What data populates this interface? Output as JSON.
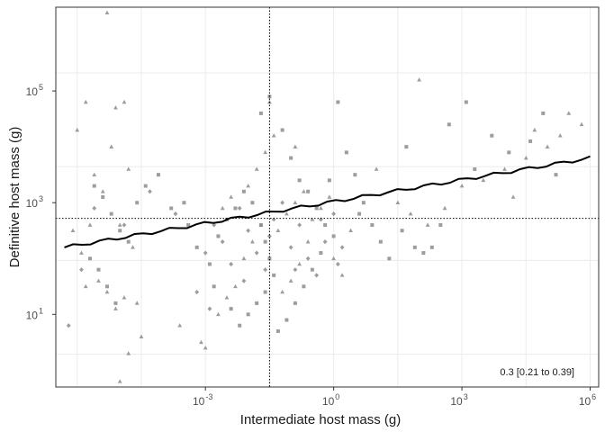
{
  "chart_data": {
    "type": "scatter",
    "xlabel": "Intermediate host mass (g)",
    "ylabel": "Definitive host mass (g)",
    "x_scale": "log10",
    "y_scale": "log10",
    "xlim_log10": [
      -6.5,
      6.2
    ],
    "ylim_log10": [
      -0.35,
      3.7
    ],
    "x_ticks": [
      {
        "log10": -3,
        "base": "10",
        "exp": "-3"
      },
      {
        "log10": 0,
        "base": "10",
        "exp": "0"
      },
      {
        "log10": 3,
        "base": "10",
        "exp": "3"
      },
      {
        "log10": 6,
        "base": "10",
        "exp": "6"
      }
    ],
    "y_ticks": [
      {
        "log10": 1,
        "base": "10",
        "exp": "1"
      },
      {
        "log10": 3,
        "base": "10",
        "exp": "3"
      },
      {
        "log10": 5,
        "base": "10",
        "exp": "5"
      }
    ],
    "grid": true,
    "reference_lines": {
      "x_log10": -1.5,
      "y_log10": 2.72
    },
    "annotation": "0.3 [0.21 to 0.39]",
    "fit_line": {
      "x_log10": [
        -6.3,
        6.0
      ],
      "y_log10": [
        2.2,
        3.8
      ]
    },
    "point_color": "#8c8c8c",
    "line_color": "#000000",
    "series": [
      {
        "shape": "triangle",
        "points": [
          [
            -5.3,
            6.4
          ],
          [
            -5.8,
            4.8
          ],
          [
            -5.1,
            4.7
          ],
          [
            -4.9,
            4.8
          ],
          [
            -5.2,
            4.0
          ],
          [
            -5.6,
            3.5
          ],
          [
            -5.4,
            3.2
          ],
          [
            -4.8,
            3.6
          ],
          [
            -5.0,
            2.6
          ],
          [
            -4.7,
            2.2
          ],
          [
            -5.9,
            2.1
          ],
          [
            -6.1,
            2.5
          ],
          [
            -5.7,
            2.6
          ],
          [
            -5.3,
            1.4
          ],
          [
            -5.5,
            1.6
          ],
          [
            -4.9,
            1.3
          ],
          [
            -4.6,
            1.2
          ],
          [
            -5.8,
            1.5
          ],
          [
            -5.1,
            1.1
          ],
          [
            -4.5,
            0.6
          ],
          [
            -4.8,
            0.3
          ],
          [
            -5.0,
            -0.2
          ],
          [
            -3.6,
            0.8
          ],
          [
            -3.1,
            0.5
          ],
          [
            -3.0,
            0.4
          ],
          [
            -2.7,
            1.0
          ],
          [
            -2.5,
            1.3
          ],
          [
            -2.3,
            1.5
          ],
          [
            -2.1,
            2.0
          ],
          [
            -1.9,
            2.3
          ],
          [
            -2.6,
            2.9
          ],
          [
            -2.4,
            3.1
          ],
          [
            -2.0,
            3.3
          ],
          [
            -1.8,
            3.6
          ],
          [
            -1.6,
            3.9
          ],
          [
            -1.4,
            4.2
          ],
          [
            -1.7,
            2.6
          ],
          [
            -1.3,
            2.5
          ],
          [
            -1.1,
            2.8
          ],
          [
            -0.9,
            3.0
          ],
          [
            -0.7,
            3.2
          ],
          [
            -0.5,
            2.7
          ],
          [
            -0.3,
            2.9
          ],
          [
            -0.1,
            3.1
          ],
          [
            -0.6,
            2.3
          ],
          [
            -0.8,
            1.9
          ],
          [
            -1.0,
            1.6
          ],
          [
            -1.2,
            1.4
          ],
          [
            0.0,
            2.0
          ],
          [
            0.2,
            1.7
          ],
          [
            0.4,
            2.5
          ],
          [
            1.0,
            3.6
          ],
          [
            1.5,
            3.0
          ],
          [
            1.8,
            2.8
          ],
          [
            2.2,
            2.6
          ],
          [
            2.6,
            2.9
          ],
          [
            3.0,
            3.3
          ],
          [
            3.5,
            3.4
          ],
          [
            4.0,
            3.6
          ],
          [
            4.5,
            3.8
          ],
          [
            5.0,
            4.0
          ],
          [
            5.3,
            4.2
          ],
          [
            5.5,
            4.6
          ],
          [
            5.8,
            4.4
          ],
          [
            4.7,
            4.3
          ],
          [
            4.2,
            3.1
          ],
          [
            2.0,
            5.2
          ],
          [
            -0.9,
            4.0
          ],
          [
            -1.5,
            4.8
          ],
          [
            -6.0,
            4.3
          ]
        ]
      },
      {
        "shape": "square",
        "points": [
          [
            -5.6,
            3.3
          ],
          [
            -5.4,
            3.1
          ],
          [
            -5.2,
            2.8
          ],
          [
            -5.0,
            2.5
          ],
          [
            -4.8,
            2.3
          ],
          [
            -5.7,
            2.0
          ],
          [
            -5.5,
            1.8
          ],
          [
            -5.3,
            1.5
          ],
          [
            -5.1,
            1.2
          ],
          [
            -4.6,
            3.0
          ],
          [
            -4.4,
            3.3
          ],
          [
            -3.8,
            2.9
          ],
          [
            -3.4,
            2.6
          ],
          [
            -3.2,
            2.2
          ],
          [
            -2.9,
            1.9
          ],
          [
            -2.7,
            2.4
          ],
          [
            -2.5,
            2.7
          ],
          [
            -2.3,
            2.9
          ],
          [
            -2.1,
            3.2
          ],
          [
            -1.9,
            3.0
          ],
          [
            -1.7,
            2.6
          ],
          [
            -1.6,
            2.3
          ],
          [
            -1.5,
            2.0
          ],
          [
            -1.4,
            1.7
          ],
          [
            -1.6,
            1.4
          ],
          [
            -1.8,
            1.2
          ],
          [
            -2.0,
            1.0
          ],
          [
            -2.2,
            0.8
          ],
          [
            -2.4,
            1.1
          ],
          [
            -1.7,
            4.6
          ],
          [
            -1.5,
            4.9
          ],
          [
            -1.2,
            4.3
          ],
          [
            -1.0,
            3.8
          ],
          [
            -0.8,
            3.4
          ],
          [
            -0.6,
            3.2
          ],
          [
            -0.4,
            2.9
          ],
          [
            -0.2,
            2.6
          ],
          [
            0.0,
            2.4
          ],
          [
            -0.3,
            2.1
          ],
          [
            -0.5,
            1.8
          ],
          [
            -0.7,
            1.5
          ],
          [
            -0.9,
            1.2
          ],
          [
            -1.1,
            0.9
          ],
          [
            -1.3,
            0.7
          ],
          [
            0.1,
            4.8
          ],
          [
            0.3,
            3.9
          ],
          [
            0.5,
            3.5
          ],
          [
            0.7,
            3.0
          ],
          [
            0.9,
            2.6
          ],
          [
            1.1,
            2.3
          ],
          [
            1.3,
            2.0
          ],
          [
            1.6,
            2.5
          ],
          [
            1.9,
            2.2
          ],
          [
            2.1,
            2.1
          ],
          [
            2.3,
            2.2
          ],
          [
            2.5,
            2.6
          ],
          [
            2.7,
            4.4
          ],
          [
            3.1,
            4.8
          ],
          [
            3.3,
            3.6
          ],
          [
            3.7,
            4.2
          ],
          [
            4.1,
            3.9
          ],
          [
            4.6,
            4.1
          ],
          [
            4.9,
            4.6
          ],
          [
            5.2,
            3.5
          ],
          [
            1.7,
            4.0
          ],
          [
            0.6,
            2.8
          ],
          [
            -0.1,
            3.4
          ],
          [
            -2.8,
            1.5
          ],
          [
            -3.5,
            3.0
          ],
          [
            -4.1,
            3.5
          ]
        ]
      },
      {
        "shape": "diamond",
        "points": [
          [
            -6.2,
            0.8
          ],
          [
            -5.9,
            1.8
          ],
          [
            -5.6,
            2.9
          ],
          [
            -4.9,
            2.6
          ],
          [
            -3.0,
            2.1
          ],
          [
            -2.8,
            2.6
          ],
          [
            -2.6,
            2.3
          ],
          [
            -2.4,
            1.9
          ],
          [
            -2.2,
            2.9
          ],
          [
            -2.0,
            2.5
          ],
          [
            -1.8,
            2.1
          ],
          [
            -1.6,
            1.8
          ],
          [
            -1.4,
            2.7
          ],
          [
            -1.2,
            3.0
          ],
          [
            -1.0,
            2.2
          ],
          [
            -0.8,
            2.6
          ],
          [
            -0.6,
            2.0
          ],
          [
            -0.4,
            1.7
          ],
          [
            -0.2,
            2.3
          ],
          [
            0.0,
            2.8
          ],
          [
            0.2,
            2.2
          ],
          [
            -3.2,
            1.4
          ],
          [
            -2.9,
            1.1
          ],
          [
            -2.1,
            1.6
          ],
          [
            -1.5,
            2.4
          ],
          [
            -0.9,
            1.8
          ],
          [
            -0.3,
            2.7
          ],
          [
            0.1,
            1.9
          ],
          [
            -4.3,
            3.2
          ],
          [
            -3.7,
            2.8
          ]
        ]
      }
    ]
  }
}
